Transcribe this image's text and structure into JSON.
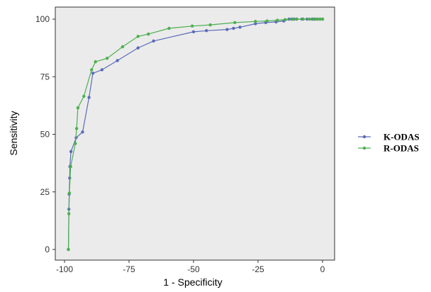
{
  "chart_data": {
    "type": "line",
    "xlabel": "1 - Specificity",
    "ylabel": "Sensitivity",
    "xlim": [
      -100,
      0
    ],
    "ylim": [
      0,
      100
    ],
    "x_ticks": [
      -100,
      -75,
      -50,
      -25,
      0
    ],
    "y_ticks": [
      0,
      25,
      50,
      75,
      100
    ],
    "grid": false,
    "legend_position": "right",
    "panel_background": "#ebebeb",
    "series": [
      {
        "name": "K-ODAS",
        "color": "#5a6bb8",
        "x": [
          -98.5,
          -98.3,
          -98.2,
          -98.0,
          -97.9,
          -97.5,
          -95.5,
          -93,
          -90.5,
          -89,
          -85.5,
          -79.5,
          -71.5,
          -65.5,
          -50,
          -45,
          -37,
          -34.5,
          -32,
          -26,
          -22,
          -18,
          -15,
          -13,
          -12,
          -11,
          -10,
          -8,
          -6,
          -4,
          -3,
          -2,
          -1,
          0
        ],
        "y": [
          0,
          17.5,
          24,
          31,
          36,
          42.5,
          48.5,
          51,
          66,
          76.5,
          78,
          82,
          87.5,
          90.5,
          94.5,
          95,
          95.5,
          96,
          96.5,
          98,
          98.5,
          98.8,
          99.2,
          100,
          100,
          100,
          100,
          100,
          100,
          100,
          100,
          100,
          100,
          100
        ]
      },
      {
        "name": "R-ODAS",
        "color": "#4caf50",
        "x": [
          -98.5,
          -98.3,
          -98.1,
          -97.6,
          -95.8,
          -95.3,
          -94.8,
          -92.5,
          -89.5,
          -88,
          -83.5,
          -77.5,
          -71.5,
          -67.5,
          -59.5,
          -50.5,
          -43.5,
          -34,
          -26,
          -21.5,
          -17.5,
          -14.5,
          -11.5,
          -10,
          -7.5,
          -5,
          -3.5,
          -2,
          -1,
          0
        ],
        "y": [
          0,
          15.5,
          24.5,
          36,
          46,
          52.5,
          61.5,
          66.5,
          78,
          81.5,
          83,
          88,
          92.5,
          93.5,
          96,
          97,
          97.5,
          98.5,
          99,
          99.2,
          99.5,
          99.8,
          100,
          100,
          100,
          100,
          100,
          100,
          100,
          100
        ]
      }
    ]
  }
}
